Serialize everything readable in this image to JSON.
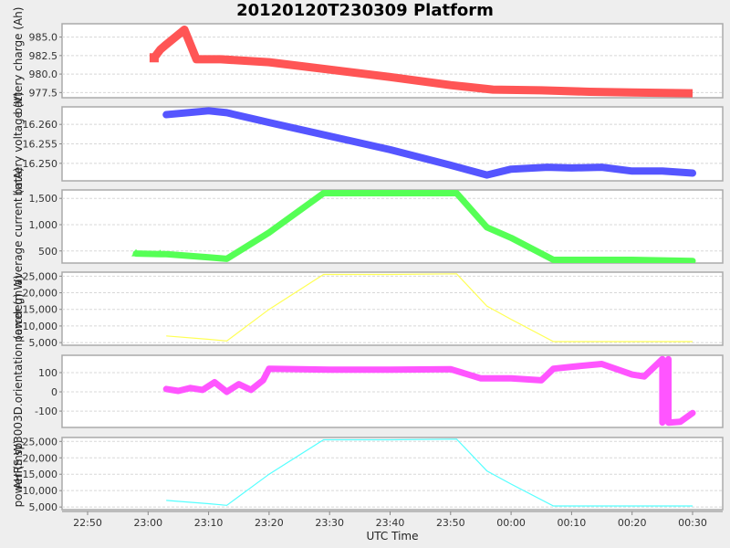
{
  "title": "20120120T230309 Platform",
  "x_axis": {
    "label": "UTC Time",
    "ticks": [
      "22:50",
      "23:00",
      "23:10",
      "23:20",
      "23:30",
      "23:40",
      "23:50",
      "00:00",
      "00:10",
      "00:20",
      "00:30"
    ]
  },
  "chart_data": [
    {
      "type": "scatter",
      "title": "battery charge",
      "ylabel": "battery charge (Ah)",
      "color": "#ff5555",
      "marker": "square",
      "yticks": [
        985.0,
        982.5,
        980.0,
        977.5
      ],
      "ytick_labels": [
        "985.0",
        "982.5",
        "980.0",
        "977.5"
      ],
      "ylim": [
        976.8,
        986.8
      ],
      "x": [
        "23:01",
        "23:02",
        "23:03",
        "23:06",
        "23:08",
        "23:12",
        "23:20",
        "23:30",
        "23:40",
        "23:50",
        "23:57",
        "00:05",
        "00:13",
        "00:20",
        "00:30"
      ],
      "values": [
        982.2,
        983.3,
        984.0,
        986.0,
        982.0,
        982.0,
        981.6,
        980.6,
        979.6,
        978.5,
        977.9,
        977.8,
        977.6,
        977.5,
        977.4
      ]
    },
    {
      "type": "scatter",
      "title": "battery voltage",
      "ylabel": "battery voltage (V)",
      "color": "#5555ff",
      "marker": "circle",
      "yticks": [
        16.26,
        16.255,
        16.25
      ],
      "ytick_labels": [
        "16.260",
        "16.255",
        "16.250"
      ],
      "ylim": [
        16.2455,
        16.2645
      ],
      "x": [
        "23:03",
        "23:10",
        "23:13",
        "23:20",
        "23:30",
        "23:40",
        "23:50",
        "23:56",
        "00:00",
        "00:06",
        "00:10",
        "00:15",
        "00:20",
        "00:25",
        "00:30"
      ],
      "values": [
        16.2625,
        16.2635,
        16.263,
        16.2605,
        16.257,
        16.2535,
        16.2495,
        16.247,
        16.2485,
        16.249,
        16.2488,
        16.249,
        16.248,
        16.248,
        16.2475
      ]
    },
    {
      "type": "scatter",
      "title": "average current",
      "ylabel": "average current (mA)",
      "color": "#55ff55",
      "marker": "triangle",
      "yticks": [
        1500,
        1000,
        500
      ],
      "ytick_labels": [
        "1,500",
        "1,000",
        "500"
      ],
      "ylim": [
        270,
        1660
      ],
      "x": [
        "22:58",
        "23:02",
        "23:03",
        "23:10",
        "23:13",
        "23:20",
        "23:29",
        "23:40",
        "23:51",
        "23:56",
        "00:00",
        "00:07",
        "00:20",
        "00:30"
      ],
      "values": [
        450,
        440,
        440,
        380,
        350,
        850,
        1600,
        1600,
        1600,
        950,
        750,
        330,
        330,
        310
      ]
    },
    {
      "type": "line",
      "title": "power",
      "ylabel": "power (mW)",
      "color": "#ffff55",
      "yticks": [
        25000,
        20000,
        15000,
        10000,
        5000
      ],
      "ytick_labels": [
        "25,000",
        "20,000",
        "15,000",
        "10,000",
        "5,000"
      ],
      "ylim": [
        4200,
        26200
      ],
      "x": [
        "23:03",
        "23:10",
        "23:13",
        "23:20",
        "23:29",
        "23:40",
        "23:51",
        "23:56",
        "00:00",
        "00:07",
        "00:20",
        "00:30"
      ],
      "values": [
        7000,
        6000,
        5500,
        15000,
        25500,
        25500,
        25700,
        16000,
        12000,
        5300,
        5300,
        5300
      ]
    },
    {
      "type": "scatter",
      "title": "orientation",
      "ylabel": "AHRS sp3003D.orientation (arcdeg)",
      "color": "#ff55ff",
      "marker": "diamond",
      "yticks": [
        100,
        0,
        -100
      ],
      "ytick_labels": [
        "100",
        "0",
        "-100"
      ],
      "ylim": [
        -185,
        190
      ],
      "x": [
        "23:03",
        "23:05",
        "23:07",
        "23:09",
        "23:11",
        "23:13",
        "23:15",
        "23:17",
        "23:19",
        "23:20",
        "23:30",
        "23:40",
        "23:50",
        "23:55",
        "00:00",
        "00:05",
        "00:07",
        "00:10",
        "00:15",
        "00:20",
        "00:22",
        "00:25",
        "00:25",
        "00:26",
        "00:26",
        "00:28",
        "00:30"
      ],
      "values": [
        15,
        5,
        20,
        10,
        50,
        0,
        40,
        10,
        60,
        120,
        115,
        115,
        118,
        70,
        70,
        60,
        120,
        130,
        145,
        90,
        80,
        170,
        -160,
        170,
        -160,
        -155,
        -110
      ]
    },
    {
      "type": "line",
      "title": "power",
      "ylabel": "power (mW)",
      "color": "#55ffff",
      "yticks": [
        25000,
        20000,
        15000,
        10000,
        5000
      ],
      "ytick_labels": [
        "25,000",
        "20,000",
        "15,000",
        "10,000",
        "5,000"
      ],
      "ylim": [
        4200,
        26200
      ],
      "x": [
        "23:03",
        "23:10",
        "23:13",
        "23:20",
        "23:29",
        "23:40",
        "23:51",
        "23:56",
        "00:00",
        "00:07",
        "00:20",
        "00:30"
      ],
      "values": [
        7000,
        6000,
        5500,
        15000,
        25500,
        25500,
        25700,
        16000,
        12000,
        5300,
        5300,
        5300
      ]
    }
  ]
}
